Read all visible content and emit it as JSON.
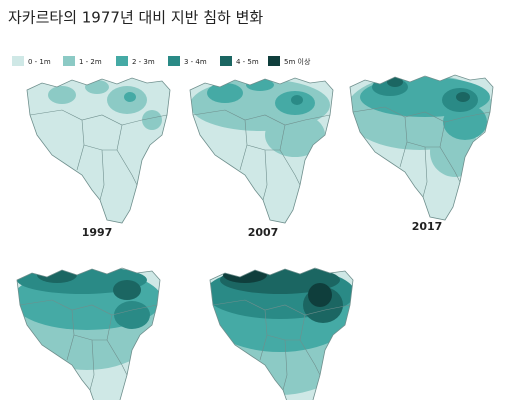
{
  "title": "자카르타의 1977년 대비 지반 침하 변화",
  "legend": [
    "0 - 1m",
    "1 - 2m",
    "2 - 3m",
    "3 - 4m",
    "4 - 5m",
    "5m 이상"
  ],
  "maps": [
    {
      "label": "1997"
    },
    {
      "label": "2007"
    },
    {
      "label": "2017"
    }
  ]
}
